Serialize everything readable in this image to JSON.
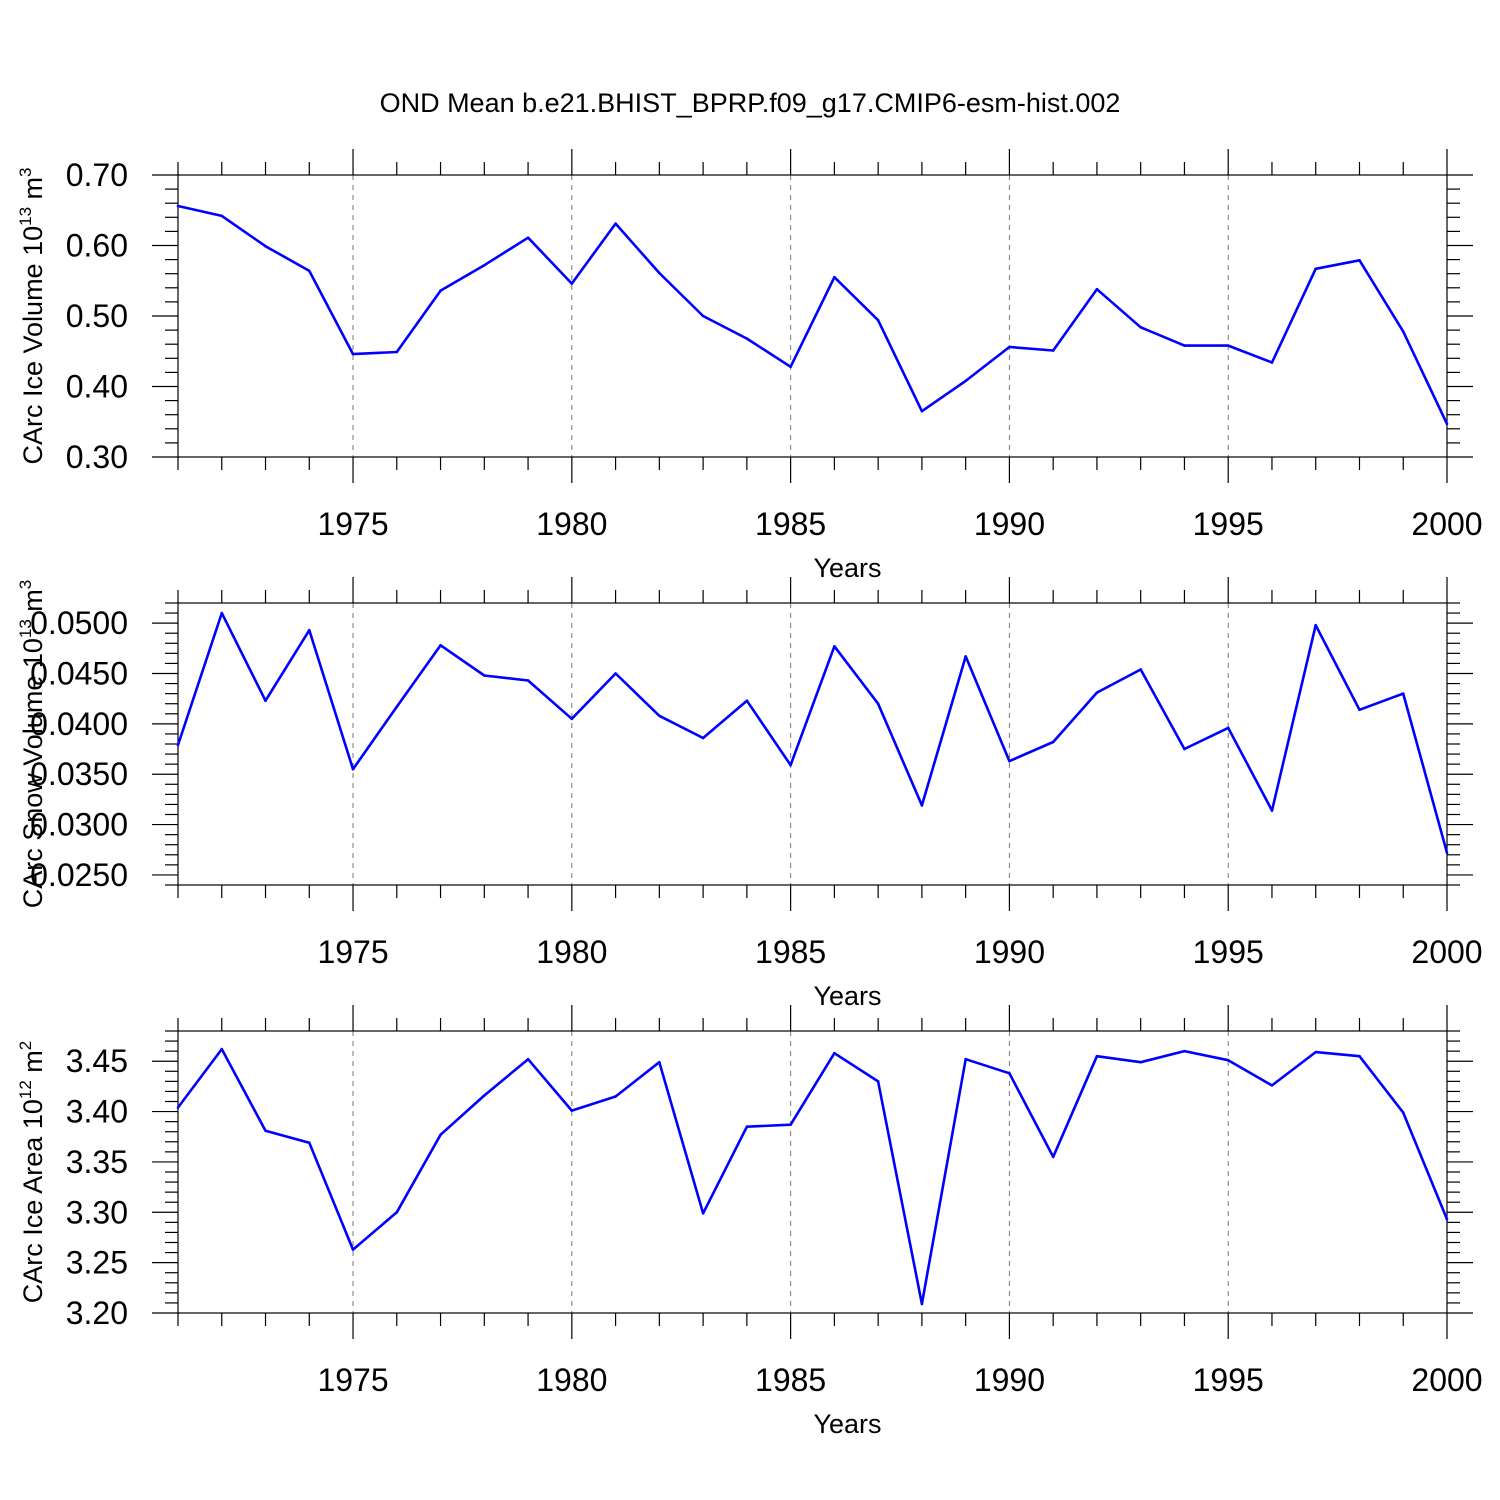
{
  "title": "OND Mean b.e21.BHIST_BPRP.f09_g17.CMIP6-esm-hist.002",
  "colors": {
    "line": "#0000ff",
    "axis": "#000000",
    "grid": "#777777"
  },
  "chart_data": [
    {
      "type": "line",
      "xlabel": "Years",
      "ylabel": "CArc Ice Volume 10",
      "ylabel_sup": "13",
      "ylabel_unit": " m",
      "ylabel_unit_sup": "3",
      "xlim": [
        1971,
        2000
      ],
      "ylim": [
        0.3,
        0.7
      ],
      "xticks": [
        1975,
        1980,
        1985,
        1990,
        1995,
        2000
      ],
      "yticks": [
        "0.30",
        "0.40",
        "0.50",
        "0.60",
        "0.70"
      ],
      "grid": "vertical dashed at major x ticks",
      "x": [
        1971,
        1972,
        1973,
        1974,
        1975,
        1976,
        1977,
        1978,
        1979,
        1980,
        1981,
        1982,
        1983,
        1984,
        1985,
        1986,
        1987,
        1988,
        1989,
        1990,
        1991,
        1992,
        1993,
        1994,
        1995,
        1996,
        1997,
        1998,
        1999,
        2000
      ],
      "values": [
        0.656,
        0.642,
        0.599,
        0.564,
        0.446,
        0.449,
        0.536,
        0.572,
        0.611,
        0.546,
        0.631,
        0.561,
        0.5,
        0.468,
        0.428,
        0.555,
        0.494,
        0.365,
        0.408,
        0.456,
        0.451,
        0.538,
        0.484,
        0.458,
        0.458,
        0.434,
        0.567,
        0.579,
        0.478,
        0.347
      ]
    },
    {
      "type": "line",
      "xlabel": "Years",
      "ylabel": "CArc Snow Volume 10",
      "ylabel_sup": "13",
      "ylabel_unit": " m",
      "ylabel_unit_sup": "3",
      "xlim": [
        1971,
        2000
      ],
      "ylim": [
        0.024,
        0.052
      ],
      "xticks": [
        1975,
        1980,
        1985,
        1990,
        1995,
        2000
      ],
      "yticks": [
        "0.0250",
        "0.0300",
        "0.0350",
        "0.0400",
        "0.0450",
        "0.0500"
      ],
      "grid": "vertical dashed at major x ticks",
      "x": [
        1971,
        1972,
        1973,
        1974,
        1975,
        1976,
        1977,
        1978,
        1979,
        1980,
        1981,
        1982,
        1983,
        1984,
        1985,
        1986,
        1987,
        1988,
        1989,
        1990,
        1991,
        1992,
        1993,
        1994,
        1995,
        1996,
        1997,
        1998,
        1999,
        2000
      ],
      "values": [
        0.0379,
        0.051,
        0.0423,
        0.0493,
        0.0355,
        0.0417,
        0.0478,
        0.0448,
        0.0443,
        0.0405,
        0.045,
        0.0408,
        0.0386,
        0.0423,
        0.0359,
        0.0477,
        0.042,
        0.0319,
        0.0467,
        0.0363,
        0.0382,
        0.0431,
        0.0454,
        0.0375,
        0.0396,
        0.0314,
        0.0498,
        0.0414,
        0.043,
        0.0272
      ]
    },
    {
      "type": "line",
      "xlabel": "Years",
      "ylabel": "CArc Ice Area 10",
      "ylabel_sup": "12",
      "ylabel_unit": " m",
      "ylabel_unit_sup": "2",
      "xlim": [
        1971,
        2000
      ],
      "ylim": [
        3.2,
        3.48
      ],
      "xticks": [
        1975,
        1980,
        1985,
        1990,
        1995,
        2000
      ],
      "yticks": [
        "3.20",
        "3.25",
        "3.30",
        "3.35",
        "3.40",
        "3.45"
      ],
      "grid": "vertical dashed at major x ticks",
      "x": [
        1971,
        1972,
        1973,
        1974,
        1975,
        1976,
        1977,
        1978,
        1979,
        1980,
        1981,
        1982,
        1983,
        1984,
        1985,
        1986,
        1987,
        1988,
        1989,
        1990,
        1991,
        1992,
        1993,
        1994,
        1995,
        1996,
        1997,
        1998,
        1999,
        2000
      ],
      "values": [
        3.404,
        3.462,
        3.381,
        3.369,
        3.263,
        3.3,
        3.377,
        3.416,
        3.452,
        3.401,
        3.415,
        3.449,
        3.299,
        3.385,
        3.387,
        3.458,
        3.43,
        3.209,
        3.452,
        3.438,
        3.355,
        3.455,
        3.449,
        3.46,
        3.451,
        3.426,
        3.459,
        3.455,
        3.399,
        3.293
      ]
    }
  ]
}
